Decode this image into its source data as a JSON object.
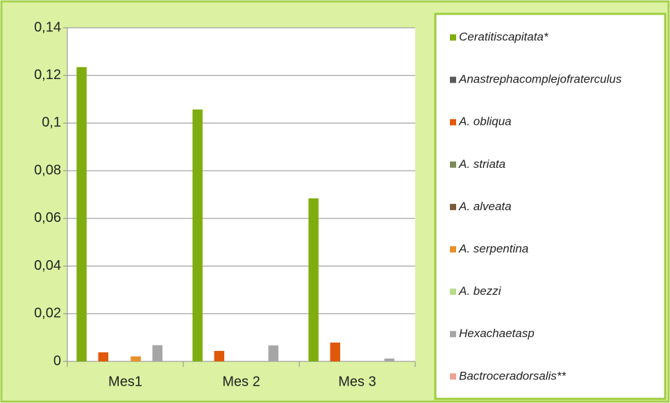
{
  "chart_data": {
    "type": "bar",
    "categories": [
      "Mes1",
      "Mes 2",
      "Mes 3"
    ],
    "ylim": [
      0,
      0.14
    ],
    "yticks": [
      {
        "value": 0,
        "label": "0"
      },
      {
        "value": 0.02,
        "label": "0,02"
      },
      {
        "value": 0.04,
        "label": "0,04"
      },
      {
        "value": 0.06,
        "label": "0,06"
      },
      {
        "value": 0.08,
        "label": "0,08"
      },
      {
        "value": 0.1,
        "label": "0,1"
      },
      {
        "value": 0.12,
        "label": "0,12"
      },
      {
        "value": 0.14,
        "label": "0,14"
      }
    ],
    "grid": true,
    "series": [
      {
        "name": "Ceratitiscapitata*",
        "color": "#7fad10",
        "values": [
          0.1235,
          0.1057,
          0.0684
        ]
      },
      {
        "name": "Anastrephacomplejofraterculus",
        "color": "#5a5a5a",
        "values": [
          0,
          0,
          0
        ]
      },
      {
        "name": "A. obliqua",
        "color": "#e0580a",
        "values": [
          0.0038,
          0.0044,
          0.0079
        ]
      },
      {
        "name": "A. striata",
        "color": "#7a8c5a",
        "values": [
          0,
          0,
          0
        ]
      },
      {
        "name": "A. alveata",
        "color": "#7a5a3a",
        "values": [
          0,
          0,
          0
        ]
      },
      {
        "name": "A. serpentina",
        "color": "#e8902a",
        "values": [
          0.0021,
          0,
          0
        ]
      },
      {
        "name": "A. bezzi",
        "color": "#b8dc8c",
        "values": [
          0,
          0,
          0
        ]
      },
      {
        "name": "Hexachaetasp",
        "color": "#a6a6a6",
        "values": [
          0.0068,
          0.0067,
          0.0012
        ]
      },
      {
        "name": "Bactroceradorsalis**",
        "color": "#f0a090",
        "values": [
          0,
          0,
          0
        ]
      }
    ]
  }
}
